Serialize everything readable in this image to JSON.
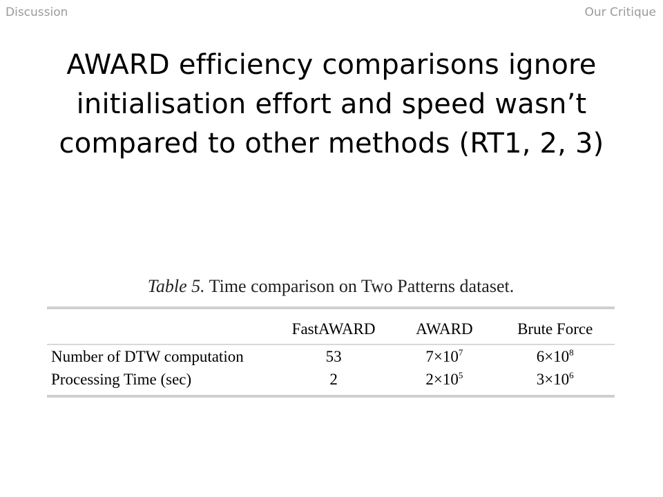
{
  "header": {
    "left": "Discussion",
    "right": "Our Critique"
  },
  "slide": {
    "title_lines": [
      "AWARD efficiency comparisons ignore",
      "initialisation effort and speed wasn’t",
      "compared to other methods (RT1, 2, 3)"
    ]
  },
  "table": {
    "caption_label": "Table 5.",
    "caption_text": " Time comparison on Two Patterns dataset.",
    "columns": [
      "",
      "FastAWARD",
      "AWARD",
      "Brute Force"
    ],
    "rows": [
      {
        "label": "Number of DTW computation",
        "cells": [
          {
            "base": "53",
            "exp": ""
          },
          {
            "base": "7×10",
            "exp": "7"
          },
          {
            "base": "6×10",
            "exp": "8"
          }
        ]
      },
      {
        "label": "Processing Time (sec)",
        "cells": [
          {
            "base": "2",
            "exp": ""
          },
          {
            "base": "2×10",
            "exp": "5"
          },
          {
            "base": "3×10",
            "exp": "6"
          }
        ]
      }
    ]
  }
}
